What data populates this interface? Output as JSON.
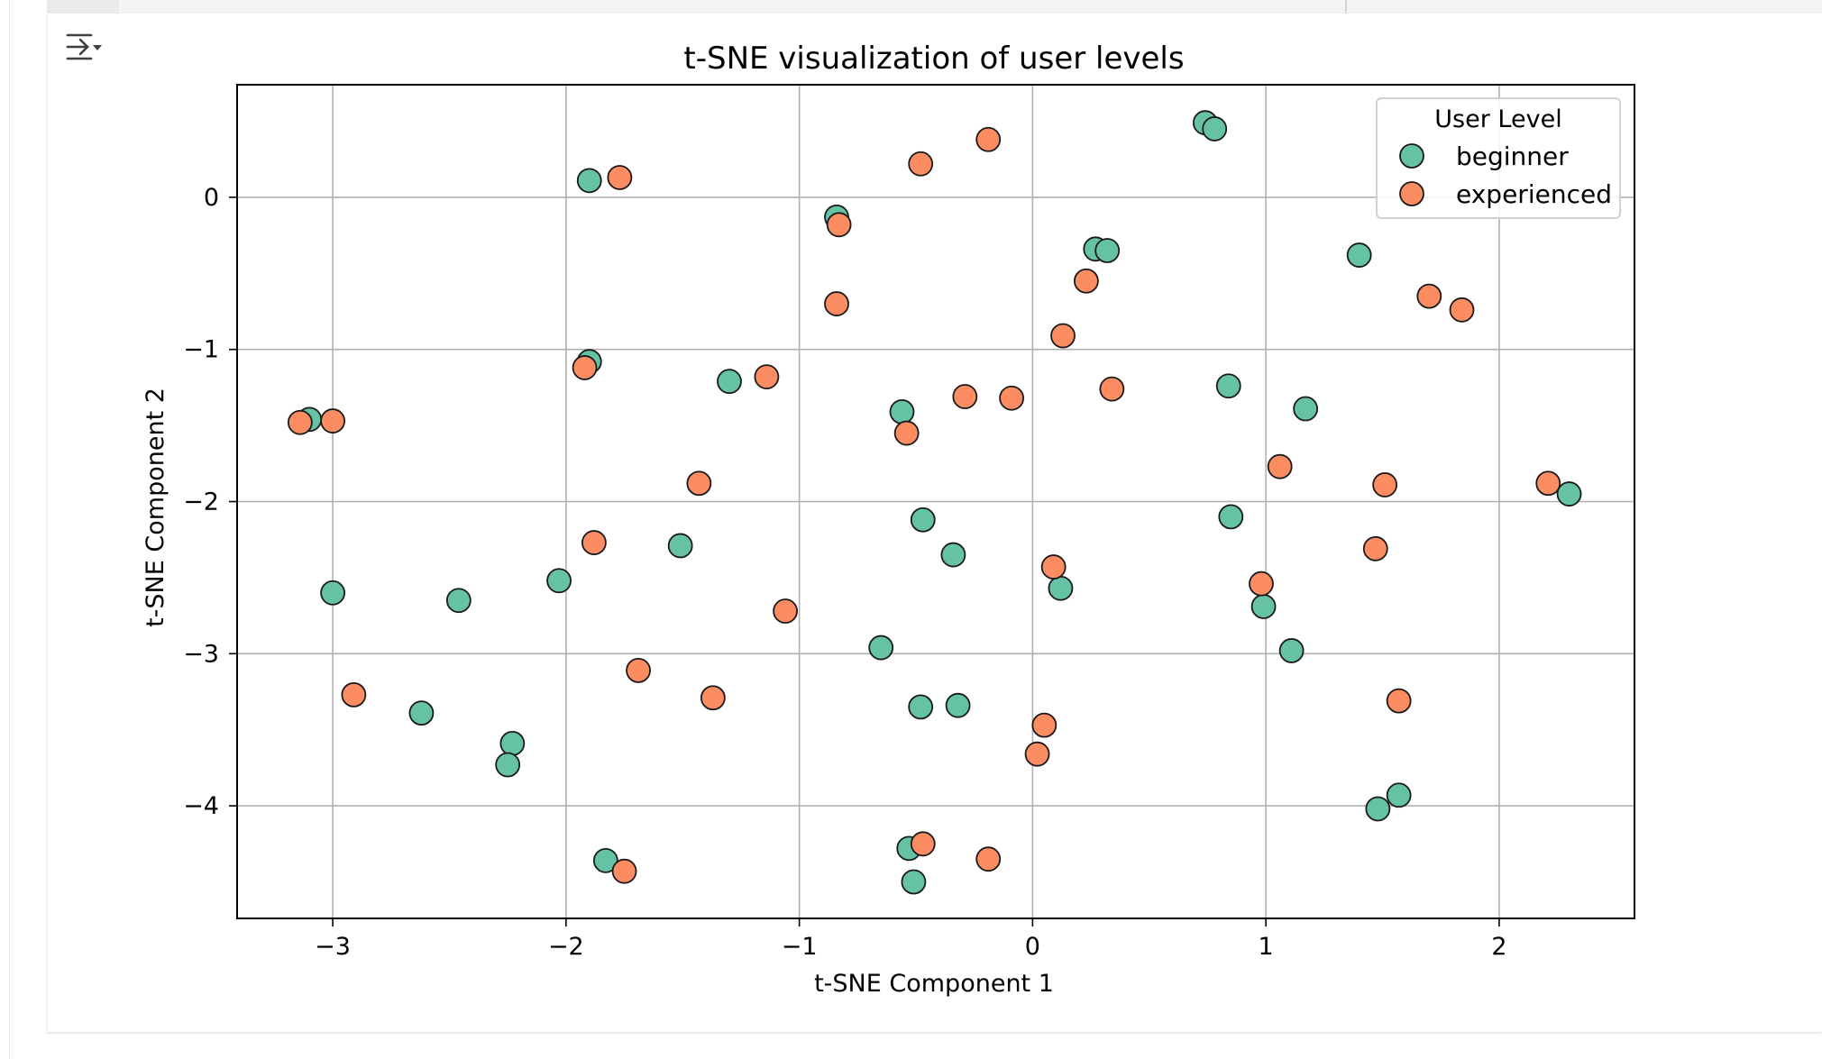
{
  "toolbar": {
    "toggle_icon": "output-collapse-icon"
  },
  "chart_data": {
    "type": "scatter",
    "title": "t-SNE visualization of user levels",
    "xlabel": "t-SNE Component 1",
    "ylabel": "t-SNE Component 2",
    "xlim": [
      -3.41,
      2.58
    ],
    "ylim": [
      -4.74,
      0.74
    ],
    "xticks": [
      -3,
      -2,
      -1,
      0,
      1,
      2
    ],
    "yticks": [
      0,
      -1,
      -2,
      -3,
      -4
    ],
    "xtick_labels": [
      "−3",
      "−2",
      "−1",
      "0",
      "1",
      "2"
    ],
    "ytick_labels": [
      "0",
      "−1",
      "−2",
      "−3",
      "−4"
    ],
    "grid": true,
    "legend": {
      "title": "User Level",
      "position": "top-right"
    },
    "series": [
      {
        "name": "beginner",
        "color": "#66c2a5",
        "points": [
          [
            0.74,
            0.49
          ],
          [
            0.78,
            0.45
          ],
          [
            -1.9,
            0.11
          ],
          [
            -0.84,
            -0.13
          ],
          [
            0.27,
            -0.34
          ],
          [
            0.32,
            -0.35
          ],
          [
            1.4,
            -0.38
          ],
          [
            -1.9,
            -1.08
          ],
          [
            -1.3,
            -1.21
          ],
          [
            0.84,
            -1.24
          ],
          [
            -3.1,
            -1.46
          ],
          [
            -0.56,
            -1.41
          ],
          [
            1.17,
            -1.39
          ],
          [
            2.3,
            -1.95
          ],
          [
            -0.47,
            -2.12
          ],
          [
            0.85,
            -2.1
          ],
          [
            -1.51,
            -2.29
          ],
          [
            -2.03,
            -2.52
          ],
          [
            -0.34,
            -2.35
          ],
          [
            -3.0,
            -2.6
          ],
          [
            -2.46,
            -2.65
          ],
          [
            0.12,
            -2.57
          ],
          [
            0.99,
            -2.69
          ],
          [
            -0.65,
            -2.96
          ],
          [
            1.11,
            -2.98
          ],
          [
            -2.62,
            -3.39
          ],
          [
            -0.48,
            -3.35
          ],
          [
            -0.32,
            -3.34
          ],
          [
            -2.23,
            -3.59
          ],
          [
            -2.25,
            -3.73
          ],
          [
            1.57,
            -3.93
          ],
          [
            1.48,
            -4.02
          ],
          [
            -0.53,
            -4.28
          ],
          [
            -1.83,
            -4.36
          ],
          [
            -0.51,
            -4.5
          ]
        ]
      },
      {
        "name": "experienced",
        "color": "#fc8d62",
        "points": [
          [
            -0.19,
            0.38
          ],
          [
            -0.48,
            0.22
          ],
          [
            -1.77,
            0.13
          ],
          [
            -0.83,
            -0.18
          ],
          [
            0.23,
            -0.55
          ],
          [
            1.7,
            -0.65
          ],
          [
            1.84,
            -0.74
          ],
          [
            -0.84,
            -0.7
          ],
          [
            0.13,
            -0.91
          ],
          [
            -1.92,
            -1.12
          ],
          [
            -1.14,
            -1.18
          ],
          [
            0.34,
            -1.26
          ],
          [
            -0.29,
            -1.31
          ],
          [
            -0.09,
            -1.32
          ],
          [
            -3.14,
            -1.48
          ],
          [
            -3.0,
            -1.47
          ],
          [
            -0.54,
            -1.55
          ],
          [
            1.06,
            -1.77
          ],
          [
            -1.43,
            -1.88
          ],
          [
            1.51,
            -1.89
          ],
          [
            2.21,
            -1.88
          ],
          [
            -1.88,
            -2.27
          ],
          [
            1.47,
            -2.31
          ],
          [
            0.09,
            -2.43
          ],
          [
            0.98,
            -2.54
          ],
          [
            -1.06,
            -2.72
          ],
          [
            -2.91,
            -3.27
          ],
          [
            -1.69,
            -3.11
          ],
          [
            -1.37,
            -3.29
          ],
          [
            1.57,
            -3.31
          ],
          [
            0.05,
            -3.47
          ],
          [
            0.02,
            -3.66
          ],
          [
            -0.47,
            -4.25
          ],
          [
            -0.19,
            -4.35
          ],
          [
            -1.75,
            -4.43
          ]
        ]
      }
    ]
  }
}
